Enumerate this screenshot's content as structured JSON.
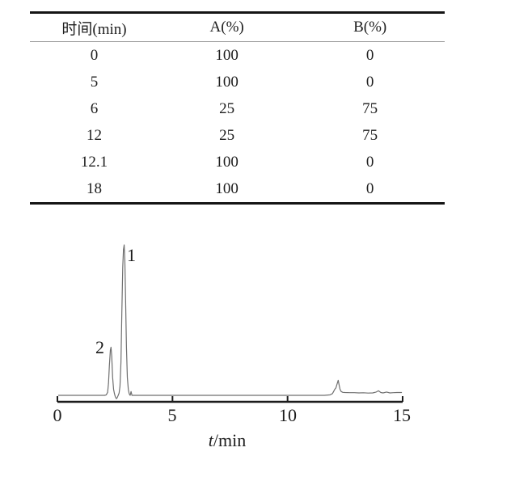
{
  "table": {
    "headers": [
      "时间(min)",
      "A(%)",
      "B(%)"
    ],
    "rows": [
      [
        "0",
        "100",
        "0"
      ],
      [
        "5",
        "100",
        "0"
      ],
      [
        "6",
        "25",
        "75"
      ],
      [
        "12",
        "25",
        "75"
      ],
      [
        "12.1",
        "100",
        "0"
      ],
      [
        "18",
        "100",
        "0"
      ]
    ]
  },
  "chart_data": {
    "type": "line",
    "title": "",
    "xlabel_italic": "t",
    "xlabel_rest": "/min",
    "ylabel": "",
    "xlim": [
      0,
      15
    ],
    "xticks": [
      "0",
      "5",
      "10",
      "15"
    ],
    "xtick_values": [
      0,
      5,
      10,
      15
    ],
    "grid": false,
    "legend": false,
    "axis_color": "#1c1c1c",
    "trace_color": "#6f6f6f",
    "peaks": [
      {
        "label": "1",
        "t": 2.9,
        "rel_height": 100
      },
      {
        "label": "2",
        "t": 2.33,
        "rel_height": 32
      },
      {
        "label": "",
        "t": 12.2,
        "rel_height": 10
      }
    ],
    "series": [
      {
        "name": "chromatogram-trace",
        "points": [
          [
            0.05,
            0
          ],
          [
            0.5,
            0
          ],
          [
            1.0,
            0
          ],
          [
            1.5,
            0
          ],
          [
            1.9,
            0
          ],
          [
            2.05,
            0
          ],
          [
            2.12,
            0.3
          ],
          [
            2.18,
            2
          ],
          [
            2.22,
            8
          ],
          [
            2.26,
            20
          ],
          [
            2.3,
            30
          ],
          [
            2.33,
            32
          ],
          [
            2.36,
            26
          ],
          [
            2.4,
            12
          ],
          [
            2.44,
            4
          ],
          [
            2.48,
            1
          ],
          [
            2.52,
            -1
          ],
          [
            2.56,
            -2.2
          ],
          [
            2.6,
            -1.5
          ],
          [
            2.64,
            0
          ],
          [
            2.68,
            1.5
          ],
          [
            2.72,
            6
          ],
          [
            2.76,
            22
          ],
          [
            2.8,
            55
          ],
          [
            2.84,
            85
          ],
          [
            2.87,
            97
          ],
          [
            2.9,
            100
          ],
          [
            2.93,
            90
          ],
          [
            2.96,
            65
          ],
          [
            3.0,
            32
          ],
          [
            3.04,
            12
          ],
          [
            3.08,
            4
          ],
          [
            3.12,
            1
          ],
          [
            3.16,
            0
          ],
          [
            3.2,
            2.5
          ],
          [
            3.24,
            0
          ],
          [
            3.3,
            0
          ],
          [
            4,
            0
          ],
          [
            5,
            0
          ],
          [
            6,
            0
          ],
          [
            7,
            0
          ],
          [
            8,
            0
          ],
          [
            9,
            0
          ],
          [
            10,
            0
          ],
          [
            11,
            0
          ],
          [
            11.6,
            0
          ],
          [
            11.85,
            0.3
          ],
          [
            11.95,
            1.2
          ],
          [
            12.0,
            2.5
          ],
          [
            12.05,
            4
          ],
          [
            12.1,
            5
          ],
          [
            12.14,
            7
          ],
          [
            12.2,
            10
          ],
          [
            12.24,
            7
          ],
          [
            12.28,
            4
          ],
          [
            12.33,
            2.5
          ],
          [
            12.4,
            2
          ],
          [
            12.5,
            1.9
          ],
          [
            12.7,
            1.8
          ],
          [
            12.9,
            1.8
          ],
          [
            13.1,
            1.6
          ],
          [
            13.3,
            1.7
          ],
          [
            13.5,
            1.5
          ],
          [
            13.7,
            1.6
          ],
          [
            13.85,
            2.2
          ],
          [
            13.95,
            3.0
          ],
          [
            14.05,
            1.9
          ],
          [
            14.15,
            1.6
          ],
          [
            14.3,
            2.2
          ],
          [
            14.45,
            1.6
          ],
          [
            14.6,
            1.8
          ],
          [
            14.75,
            1.9
          ],
          [
            14.95,
            1.9
          ]
        ]
      }
    ]
  }
}
